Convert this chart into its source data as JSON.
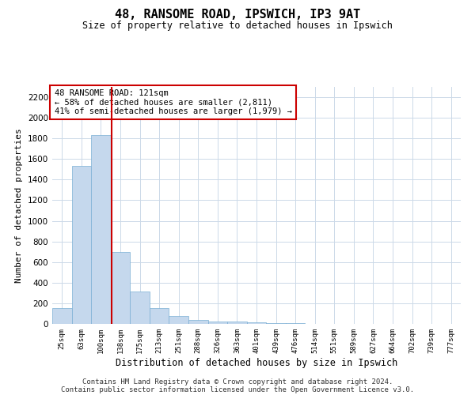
{
  "title": "48, RANSOME ROAD, IPSWICH, IP3 9AT",
  "subtitle": "Size of property relative to detached houses in Ipswich",
  "xlabel": "Distribution of detached houses by size in Ipswich",
  "ylabel": "Number of detached properties",
  "categories": [
    "25sqm",
    "63sqm",
    "100sqm",
    "138sqm",
    "175sqm",
    "213sqm",
    "251sqm",
    "288sqm",
    "326sqm",
    "363sqm",
    "401sqm",
    "439sqm",
    "476sqm",
    "514sqm",
    "551sqm",
    "589sqm",
    "627sqm",
    "664sqm",
    "702sqm",
    "739sqm",
    "777sqm"
  ],
  "values": [
    150,
    1530,
    1830,
    700,
    315,
    150,
    80,
    42,
    26,
    20,
    14,
    8,
    8,
    0,
    0,
    0,
    0,
    0,
    0,
    0,
    0
  ],
  "bar_color": "#c5d8ed",
  "bar_edgecolor": "#7aafd4",
  "annotation_text": "48 RANSOME ROAD: 121sqm\n← 58% of detached houses are smaller (2,811)\n41% of semi-detached houses are larger (1,979) →",
  "annotation_box_color": "#ffffff",
  "annotation_border_color": "#cc0000",
  "redline_color": "#cc0000",
  "redline_x": 2.55,
  "ylim": [
    0,
    2300
  ],
  "yticks": [
    0,
    200,
    400,
    600,
    800,
    1000,
    1200,
    1400,
    1600,
    1800,
    2000,
    2200
  ],
  "footer_line1": "Contains HM Land Registry data © Crown copyright and database right 2024.",
  "footer_line2": "Contains public sector information licensed under the Open Government Licence v3.0.",
  "background_color": "#ffffff",
  "grid_color": "#ccd9e8"
}
